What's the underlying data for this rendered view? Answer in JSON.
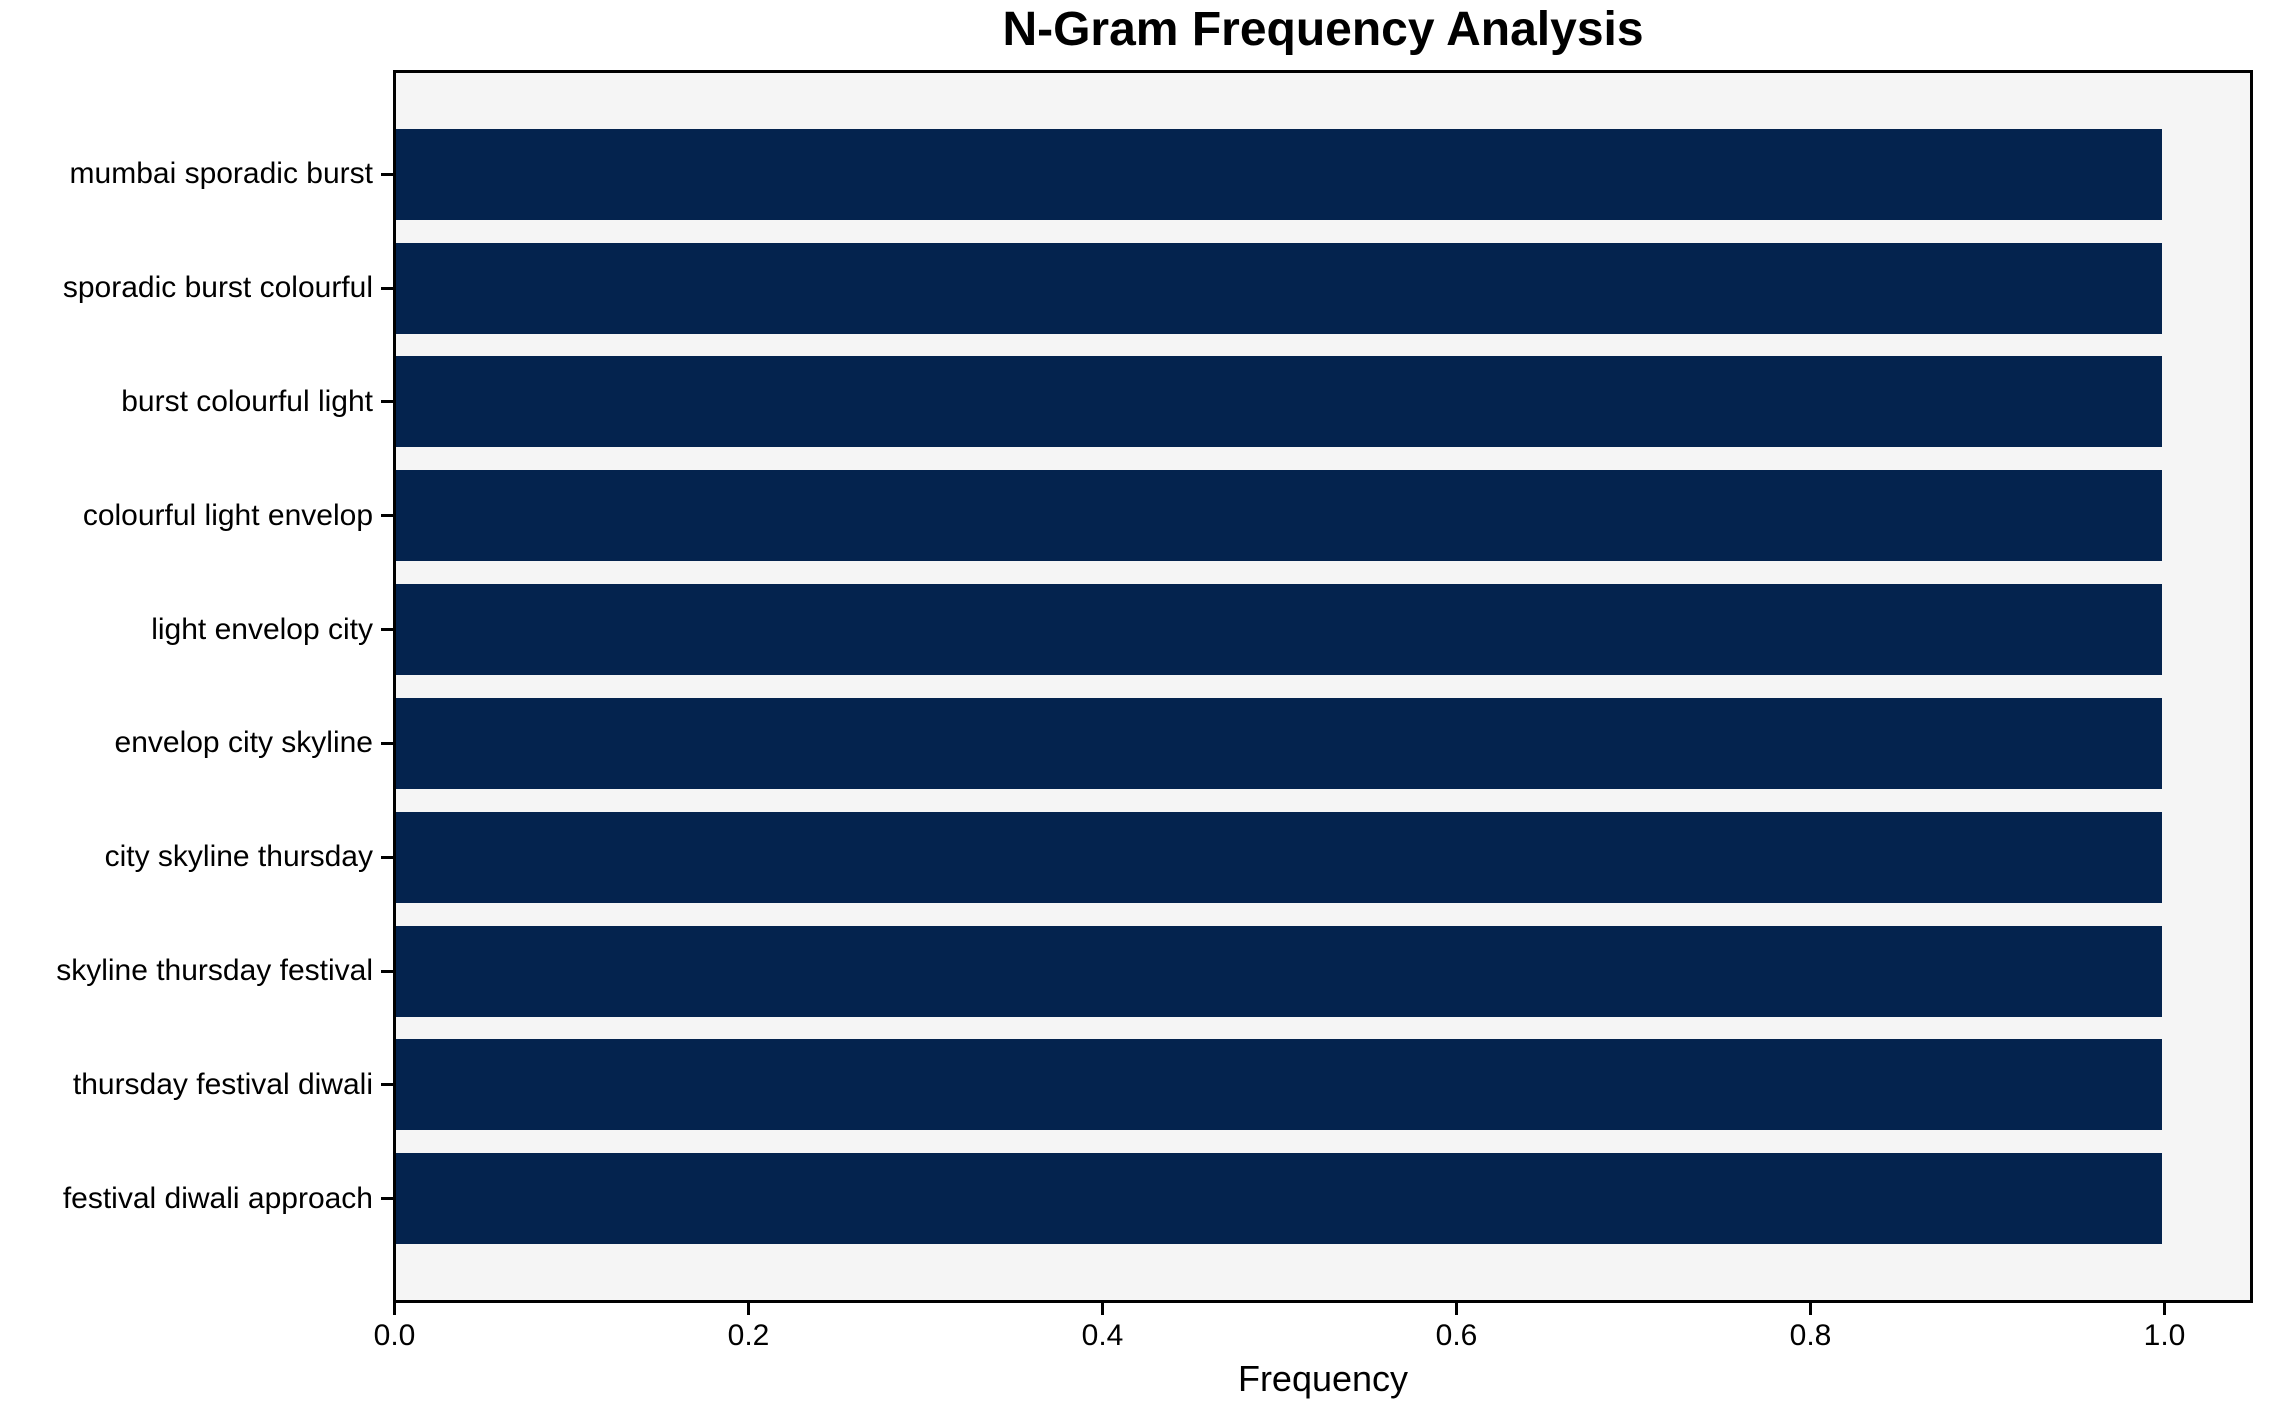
{
  "chart_data": {
    "type": "bar",
    "orientation": "horizontal",
    "title": "N-Gram Frequency Analysis",
    "xlabel": "Frequency",
    "categories": [
      "mumbai sporadic burst",
      "sporadic burst colourful",
      "burst colourful light",
      "colourful light envelop",
      "light envelop city",
      "envelop city skyline",
      "city skyline thursday",
      "skyline thursday festival",
      "thursday festival diwali",
      "festival diwali approach"
    ],
    "values": [
      1.0,
      1.0,
      1.0,
      1.0,
      1.0,
      1.0,
      1.0,
      1.0,
      1.0,
      1.0
    ],
    "xlim": [
      0,
      1.05
    ],
    "xticks": [
      0.0,
      0.2,
      0.4,
      0.6,
      0.8,
      1.0
    ],
    "xtick_labels": [
      "0.0",
      "0.2",
      "0.4",
      "0.6",
      "0.8",
      "1.0"
    ],
    "bar_color": "#04234e",
    "plot_bg": "#f5f5f5",
    "figure_bg": "#ffffff",
    "grid": false,
    "legend": null,
    "bar_height_fraction": 0.8
  }
}
